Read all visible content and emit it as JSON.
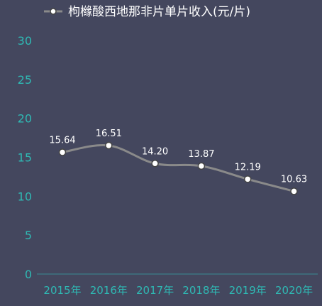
{
  "chart_data": {
    "type": "line",
    "title": "",
    "xlabel": "",
    "ylabel": "",
    "categories": [
      "2015年",
      "2016年",
      "2017年",
      "2018年",
      "2019年",
      "2020年"
    ],
    "series": [
      {
        "name": "枸橼酸西地那非片单片收入(元/片)",
        "values": [
          15.64,
          16.51,
          14.2,
          13.87,
          12.19,
          10.63
        ],
        "data_labels": [
          "15.64",
          "16.51",
          "14.20",
          "13.87",
          "12.19",
          "10.63"
        ]
      }
    ],
    "ylim": [
      0,
      30
    ],
    "yticks": [
      "0",
      "5",
      "10",
      "15",
      "20",
      "25",
      "30"
    ],
    "grid": false,
    "legend_position": "top-center",
    "smooth": true,
    "colors": {
      "background": "#44475e",
      "line": "#8a8a8a",
      "marker_fill": "#ffffff",
      "marker_stroke": "#444444",
      "tick_text": "#2fb9b4",
      "axis": "#2fb9b4",
      "label_text": "#ffffff"
    }
  }
}
